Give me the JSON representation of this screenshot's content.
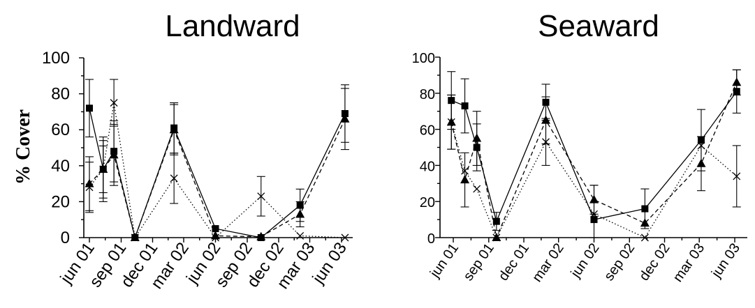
{
  "chart_data": [
    {
      "type": "line",
      "title": "Landward",
      "ylabel": "% Cover",
      "xlabel": "",
      "ylim": [
        0,
        100
      ],
      "yticks": [
        0,
        20,
        40,
        60,
        80,
        100
      ],
      "xticks": [
        "jun 01",
        "sep 01",
        "dec 01",
        "mar 02",
        "jun 02",
        "sep 02",
        "dec 02",
        "mar 03",
        "jun 03"
      ],
      "grid": false,
      "series": [
        {
          "marker": "square",
          "line_style": "solid",
          "x": [
            "2001-06-15",
            "2001-07-25",
            "2001-08-25",
            "2001-10-25",
            "2002-02-15",
            "2002-06-15",
            "2002-10-25",
            "2003-02-15",
            "2003-06-25"
          ],
          "y": [
            72,
            38,
            48,
            0,
            61,
            5,
            0,
            18,
            69
          ],
          "err": [
            16,
            18,
            17,
            0,
            14,
            0,
            0,
            9,
            16
          ]
        },
        {
          "marker": "triangle",
          "line_style": "dashed",
          "x": [
            "2001-06-15",
            "2001-07-25",
            "2001-08-25",
            "2001-10-25",
            "2002-02-15",
            "2002-06-15",
            "2002-10-25",
            "2003-02-15",
            "2003-06-25"
          ],
          "y": [
            30,
            38,
            46,
            0,
            60,
            1,
            0.5,
            13,
            66
          ],
          "err": [
            15,
            13,
            17,
            0,
            14,
            0,
            0,
            7,
            17
          ]
        },
        {
          "marker": "cross",
          "line_style": "dotted",
          "x": [
            "2001-06-15",
            "2001-07-25",
            "2001-08-25",
            "2001-10-25",
            "2002-02-15",
            "2002-06-15",
            "2002-10-25",
            "2003-02-15",
            "2003-06-25"
          ],
          "y": [
            28,
            38,
            75,
            0,
            33,
            0,
            23,
            1,
            0
          ],
          "err": [
            14,
            16,
            13,
            0,
            14,
            0,
            11,
            0,
            0
          ]
        }
      ]
    },
    {
      "type": "line",
      "title": "Seaward",
      "ylabel": "",
      "xlabel": "",
      "ylim": [
        0,
        100
      ],
      "yticks": [
        0,
        20,
        40,
        60,
        80,
        100
      ],
      "xticks": [
        "jun 01",
        "sep 01",
        "dec 01",
        "mar 02",
        "jun 02",
        "sep 02",
        "dec 02",
        "mar 03",
        "jun 03"
      ],
      "grid": false,
      "series": [
        {
          "marker": "square",
          "line_style": "solid",
          "x": [
            "2001-06-10",
            "2001-07-15",
            "2001-08-15",
            "2001-10-05",
            "2002-02-10",
            "2002-06-15",
            "2002-10-25",
            "2003-03-20",
            "2003-06-20"
          ],
          "y": [
            76,
            73,
            50,
            9,
            75,
            10,
            16,
            54,
            81
          ],
          "err": [
            16,
            15,
            13,
            5,
            10,
            19,
            11,
            17,
            12
          ]
        },
        {
          "marker": "triangle",
          "line_style": "dashed",
          "x": [
            "2001-06-10",
            "2001-07-15",
            "2001-08-15",
            "2001-10-05",
            "2002-02-10",
            "2002-06-15",
            "2002-10-25",
            "2003-03-20",
            "2003-06-20"
          ],
          "y": [
            64,
            32,
            55,
            0,
            65,
            21,
            8,
            41,
            86
          ],
          "err": [
            15,
            15,
            15,
            0,
            13,
            8,
            0,
            15,
            7
          ]
        },
        {
          "marker": "cross",
          "line_style": "dotted",
          "x": [
            "2001-06-10",
            "2001-07-15",
            "2001-08-15",
            "2001-10-05",
            "2002-02-10",
            "2002-06-15",
            "2002-10-25",
            "2003-03-20",
            "2003-06-20"
          ],
          "y": [
            64,
            37,
            27,
            0,
            53,
            13,
            0,
            51,
            34
          ],
          "err": [
            15,
            0,
            0,
            0,
            13,
            0,
            0,
            0,
            17
          ]
        }
      ]
    }
  ]
}
